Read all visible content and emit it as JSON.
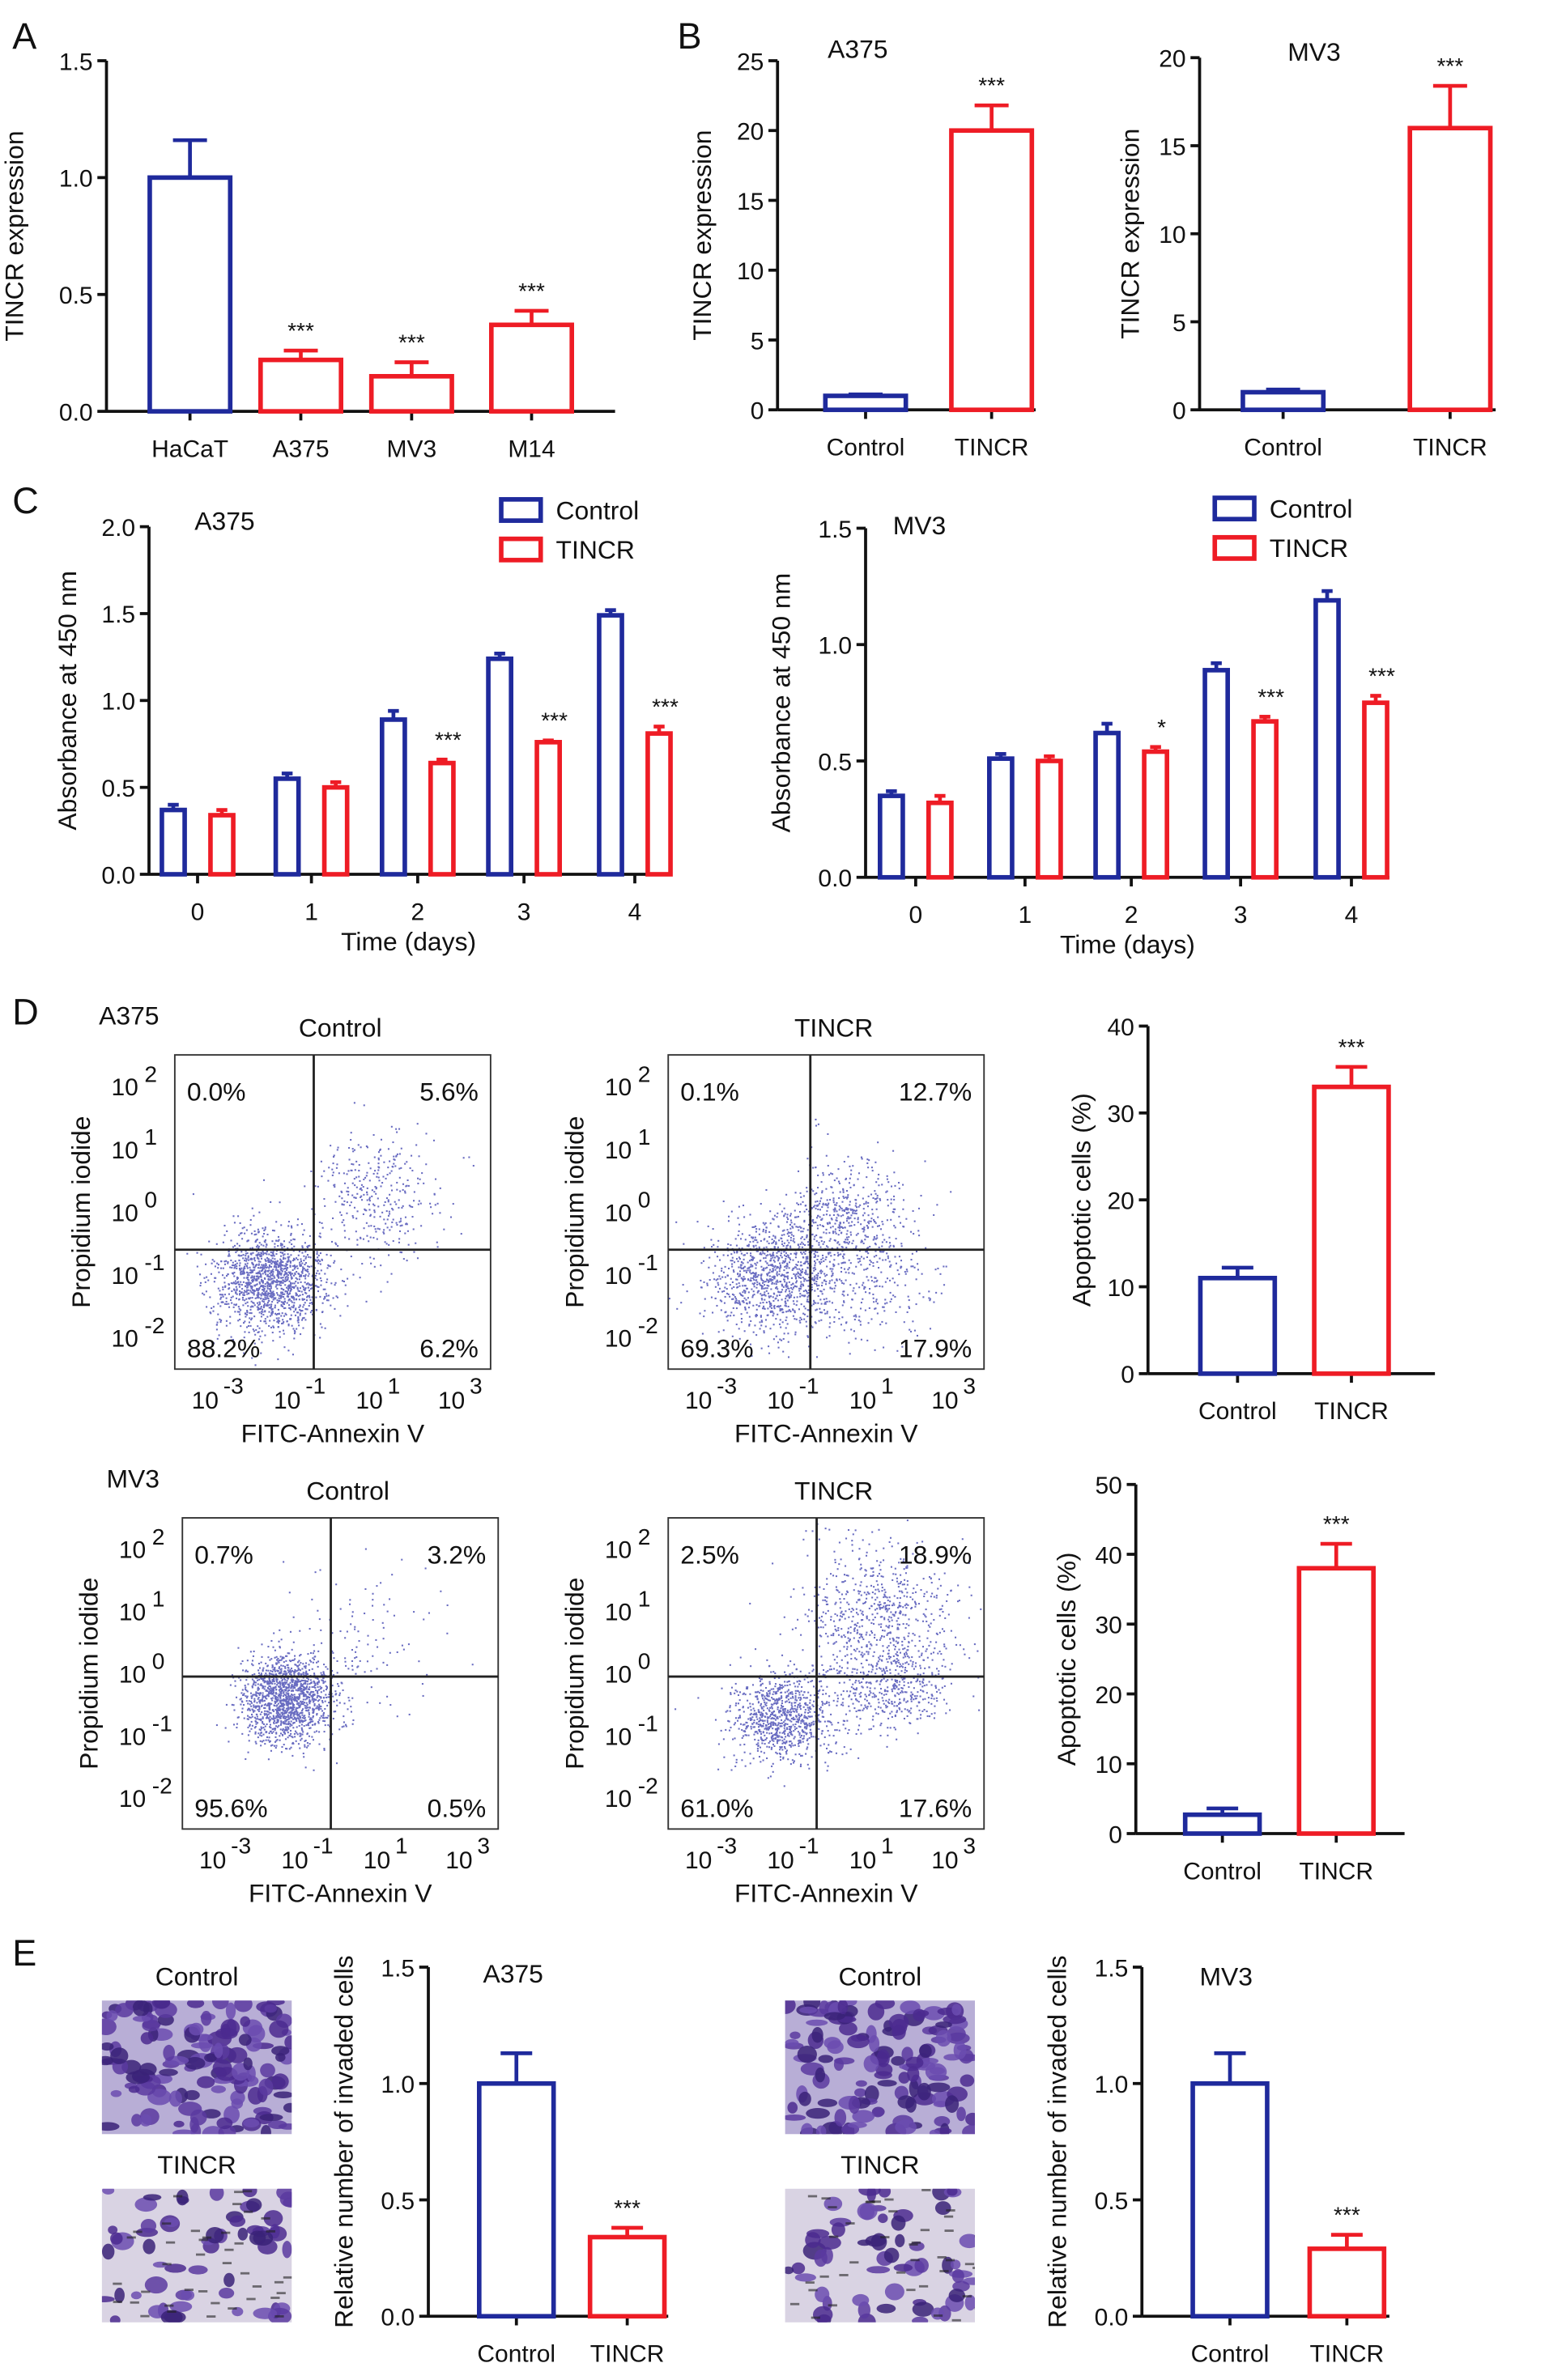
{
  "panels": [
    "A",
    "B",
    "C",
    "D",
    "E"
  ],
  "colors": {
    "control": "#1f2a9c",
    "tincr": "#ee1c25",
    "axis": "#111111",
    "dots": "#2b2fa8"
  },
  "chart_data": [
    {
      "id": "A",
      "type": "bar",
      "title": "",
      "ylabel": "TINCR expression",
      "categories": [
        "HaCaT",
        "A375",
        "MV3",
        "M14"
      ],
      "ylim": [
        0,
        1.5
      ],
      "yticks": [
        "0.0",
        "0.5",
        "1.0",
        "1.5"
      ],
      "colors": [
        "control",
        "tincr",
        "tincr",
        "tincr"
      ],
      "series": [
        {
          "values": [
            1.0,
            0.22,
            0.15,
            0.37
          ],
          "errors": [
            0.16,
            0.04,
            0.06,
            0.06
          ],
          "sig": [
            "",
            "***",
            "***",
            "***"
          ]
        }
      ]
    },
    {
      "id": "B1",
      "type": "bar",
      "title": "A375",
      "ylabel": "TINCR expression",
      "categories": [
        "Control",
        "TINCR"
      ],
      "ylim": [
        0,
        25
      ],
      "yticks": [
        "0",
        "5",
        "10",
        "15",
        "20",
        "25"
      ],
      "colors": [
        "control",
        "tincr"
      ],
      "series": [
        {
          "values": [
            1.0,
            20.0
          ],
          "errors": [
            0.1,
            1.8
          ],
          "sig": [
            "",
            "***"
          ]
        }
      ]
    },
    {
      "id": "B2",
      "type": "bar",
      "title": "MV3",
      "ylabel": "TINCR expression",
      "categories": [
        "Control",
        "TINCR"
      ],
      "ylim": [
        0,
        20
      ],
      "yticks": [
        "0",
        "5",
        "10",
        "15",
        "20"
      ],
      "colors": [
        "control",
        "tincr"
      ],
      "series": [
        {
          "values": [
            1.0,
            16.0
          ],
          "errors": [
            0.15,
            2.4
          ],
          "sig": [
            "",
            "***"
          ]
        }
      ]
    },
    {
      "id": "C1",
      "type": "bar",
      "title": "A375",
      "ylabel": "Absorbance at 450 nm",
      "xlabel": "Time (days)",
      "categories": [
        "0",
        "1",
        "2",
        "3",
        "4"
      ],
      "ylim": [
        0,
        2.0
      ],
      "yticks": [
        "0.0",
        "0.5",
        "1.0",
        "1.5",
        "2.0"
      ],
      "legend": "top-right",
      "series": [
        {
          "name": "Control",
          "color": "control",
          "values": [
            0.37,
            0.55,
            0.89,
            1.24,
            1.49
          ],
          "errors": [
            0.03,
            0.03,
            0.05,
            0.03,
            0.03
          ],
          "sig": [
            "",
            "",
            "",
            "",
            ""
          ]
        },
        {
          "name": "TINCR",
          "color": "tincr",
          "values": [
            0.34,
            0.5,
            0.64,
            0.76,
            0.81
          ],
          "errors": [
            0.03,
            0.03,
            0.02,
            0.01,
            0.04
          ],
          "sig": [
            "",
            "",
            "***",
            "***",
            "***"
          ]
        }
      ]
    },
    {
      "id": "C2",
      "type": "bar",
      "title": "MV3",
      "ylabel": "Absorbance at 450 nm",
      "xlabel": "Time (days)",
      "categories": [
        "0",
        "1",
        "2",
        "3",
        "4"
      ],
      "ylim": [
        0,
        1.5
      ],
      "yticks": [
        "0.0",
        "0.5",
        "1.0",
        "1.5"
      ],
      "legend": "top-right",
      "series": [
        {
          "name": "Control",
          "color": "control",
          "values": [
            0.35,
            0.51,
            0.62,
            0.89,
            1.19
          ],
          "errors": [
            0.02,
            0.02,
            0.04,
            0.03,
            0.04
          ],
          "sig": [
            "",
            "",
            "",
            "",
            ""
          ]
        },
        {
          "name": "TINCR",
          "color": "tincr",
          "values": [
            0.32,
            0.5,
            0.54,
            0.67,
            0.75
          ],
          "errors": [
            0.03,
            0.02,
            0.02,
            0.02,
            0.03
          ],
          "sig": [
            "",
            "",
            "*",
            "***",
            "***"
          ]
        }
      ]
    },
    {
      "id": "D1",
      "type": "bar",
      "title": "",
      "ylabel": "Apoptotic cells (%)",
      "categories": [
        "Control",
        "TINCR"
      ],
      "ylim": [
        0,
        40
      ],
      "yticks": [
        "0",
        "10",
        "20",
        "30",
        "40"
      ],
      "colors": [
        "control",
        "tincr"
      ],
      "series": [
        {
          "values": [
            11,
            33
          ],
          "errors": [
            1.2,
            2.3
          ],
          "sig": [
            "",
            "***"
          ]
        }
      ]
    },
    {
      "id": "D2",
      "type": "bar",
      "title": "",
      "ylabel": "Apoptotic cells (%)",
      "categories": [
        "Control",
        "TINCR"
      ],
      "ylim": [
        0,
        50
      ],
      "yticks": [
        "0",
        "10",
        "20",
        "30",
        "40",
        "50"
      ],
      "colors": [
        "control",
        "tincr"
      ],
      "series": [
        {
          "values": [
            2.7,
            38
          ],
          "errors": [
            0.9,
            3.5
          ],
          "sig": [
            "",
            "***"
          ]
        }
      ]
    },
    {
      "id": "E1",
      "type": "bar",
      "title": "A375",
      "ylabel": "Relative number of invaded cells",
      "categories": [
        "Control",
        "TINCR"
      ],
      "ylim": [
        0,
        1.5
      ],
      "yticks": [
        "0.0",
        "0.5",
        "1.0",
        "1.5"
      ],
      "colors": [
        "control",
        "tincr"
      ],
      "series": [
        {
          "values": [
            1.0,
            0.34
          ],
          "errors": [
            0.13,
            0.04
          ],
          "sig": [
            "",
            "***"
          ]
        }
      ]
    },
    {
      "id": "E2",
      "type": "bar",
      "title": "MV3",
      "ylabel": "Relative number of invaded cells",
      "categories": [
        "Control",
        "TINCR"
      ],
      "ylim": [
        0,
        1.5
      ],
      "yticks": [
        "0.0",
        "0.5",
        "1.0",
        "1.5"
      ],
      "colors": [
        "control",
        "tincr"
      ],
      "series": [
        {
          "values": [
            1.0,
            0.29
          ],
          "errors": [
            0.13,
            0.06
          ],
          "sig": [
            "",
            "***"
          ]
        }
      ]
    }
  ],
  "flow": {
    "xlabel": "FITC-Annexin V",
    "ylabel": "Propidium iodide",
    "xticks": [
      "-3",
      "-1",
      "1",
      "3"
    ],
    "yticks": [
      "2",
      "1",
      "0",
      "-1",
      "-2"
    ],
    "base": "10",
    "plots": [
      {
        "id": "F1",
        "cell": "A375",
        "title": "Control",
        "quadrants": {
          "ul": "0.0%",
          "ur": "5.6%",
          "ll": "88.2%",
          "lr": "6.2%"
        }
      },
      {
        "id": "F2",
        "cell": "",
        "title": "TINCR",
        "quadrants": {
          "ul": "0.1%",
          "ur": "12.7%",
          "ll": "69.3%",
          "lr": "17.9%"
        }
      },
      {
        "id": "F3",
        "cell": "MV3",
        "title": "Control",
        "quadrants": {
          "ul": "0.7%",
          "ur": "3.2%",
          "ll": "95.6%",
          "lr": "0.5%"
        }
      },
      {
        "id": "F4",
        "cell": "",
        "title": "TINCR",
        "quadrants": {
          "ul": "2.5%",
          "ur": "18.9%",
          "ll": "61.0%",
          "lr": "17.6%"
        }
      }
    ]
  },
  "micrographs": [
    {
      "id": "M1",
      "label": "Control"
    },
    {
      "id": "M2",
      "label": "TINCR"
    },
    {
      "id": "M3",
      "label": "Control"
    },
    {
      "id": "M4",
      "label": "TINCR"
    }
  ]
}
